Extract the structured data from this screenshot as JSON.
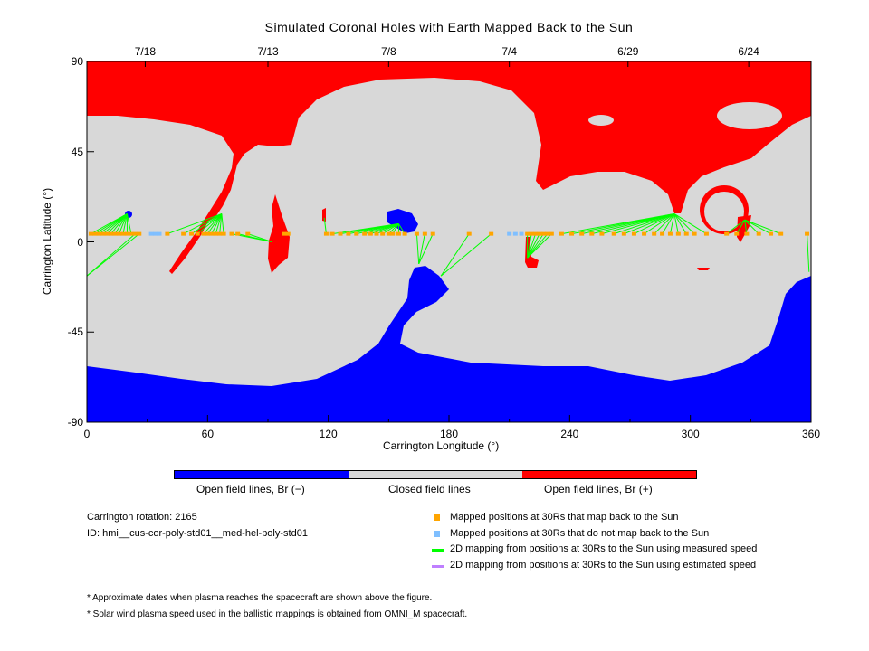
{
  "chart_data": {
    "type": "map",
    "title": "Simulated Coronal Holes with Earth Mapped Back to the Sun",
    "xlabel": "Carrington Longitude (°)",
    "ylabel": "Carrington Latitude (°)",
    "xlim": [
      0,
      360
    ],
    "ylim": [
      -90,
      90
    ],
    "xticks": [
      "0",
      "60",
      "120",
      "180",
      "240",
      "300",
      "360"
    ],
    "yticks": [
      "90",
      "45",
      "0",
      "-45",
      "-90"
    ],
    "top_dates": [
      {
        "label": "7/18",
        "lon": 29
      },
      {
        "label": "7/13",
        "lon": 90
      },
      {
        "label": "7/8",
        "lon": 150
      },
      {
        "label": "7/4",
        "lon": 210
      },
      {
        "label": "6/29",
        "lon": 269
      },
      {
        "label": "6/24",
        "lon": 329
      }
    ],
    "colors": {
      "open_negative": "#0000ff",
      "closed": "#d8d8d8",
      "open_positive": "#ff0000",
      "mapped": "#ffa500",
      "unmapped": "#7fbfff",
      "measured_speed": "#00ff00",
      "estimated_speed": "#bf7fff"
    },
    "mapped_points_lat": 4,
    "mappings": [
      {
        "foot": [
          20,
          14
        ],
        "points": [
          2,
          4,
          6,
          8,
          10,
          12,
          14,
          16,
          18,
          20,
          22
        ]
      },
      {
        "foot": [
          0,
          -17
        ],
        "points": [
          24,
          26
        ]
      },
      {
        "foot": [
          67,
          14
        ],
        "points": [
          40,
          48,
          52,
          55,
          58,
          60,
          62,
          64,
          66,
          68
        ]
      },
      {
        "foot": [
          92,
          0
        ],
        "points": [
          72,
          75,
          80
        ]
      },
      {
        "foot": [
          100,
          4
        ],
        "points": [
          98,
          100
        ]
      },
      {
        "foot": [
          118,
          12
        ],
        "points": [
          119
        ]
      },
      {
        "foot": [
          155,
          9
        ],
        "points": [
          122,
          126,
          130,
          134,
          138,
          141,
          144,
          147,
          150,
          152,
          155,
          158
        ]
      },
      {
        "foot": [
          165,
          -11
        ],
        "points": [
          164,
          168,
          172
        ]
      },
      {
        "foot": [
          176,
          -17
        ],
        "points": [
          190,
          201
        ]
      },
      {
        "foot": [
          219,
          -8
        ],
        "points": [
          219,
          221,
          223,
          225,
          227,
          229,
          231
        ]
      },
      {
        "foot": [
          292,
          14
        ],
        "points": [
          236,
          241,
          246,
          251,
          256,
          262,
          267,
          272,
          277,
          282,
          286,
          290,
          294,
          298,
          302,
          308
        ]
      },
      {
        "foot": [
          327,
          11
        ],
        "points": [
          318,
          323,
          328,
          334,
          340,
          345
        ]
      },
      {
        "foot": [
          359,
          -15
        ],
        "points": [
          358
        ]
      }
    ],
    "unmapped_points": [
      32,
      34,
      36,
      210,
      213,
      216
    ]
  },
  "colorbar": {
    "labels": [
      "Open field lines, Br (−)",
      "Closed field lines",
      "Open field lines, Br (+)"
    ]
  },
  "info": {
    "rotation": "Carrington rotation: 2165",
    "id": "ID: hmi__cus-cor-poly-std01__med-hel-poly-std01"
  },
  "legend": [
    "Mapped positions at 30Rs that map back to the Sun",
    "Mapped positions at 30Rs that do not map back to the Sun",
    "2D mapping from positions at 30Rs to the Sun using measured speed",
    "2D mapping from positions at 30Rs to the Sun using estimated speed"
  ],
  "notes": [
    "* Approximate dates when plasma reaches the spacecraft are shown above the figure.",
    "* Solar wind plasma speed used in the ballistic mappings is obtained from OMNI_M spacecraft."
  ]
}
